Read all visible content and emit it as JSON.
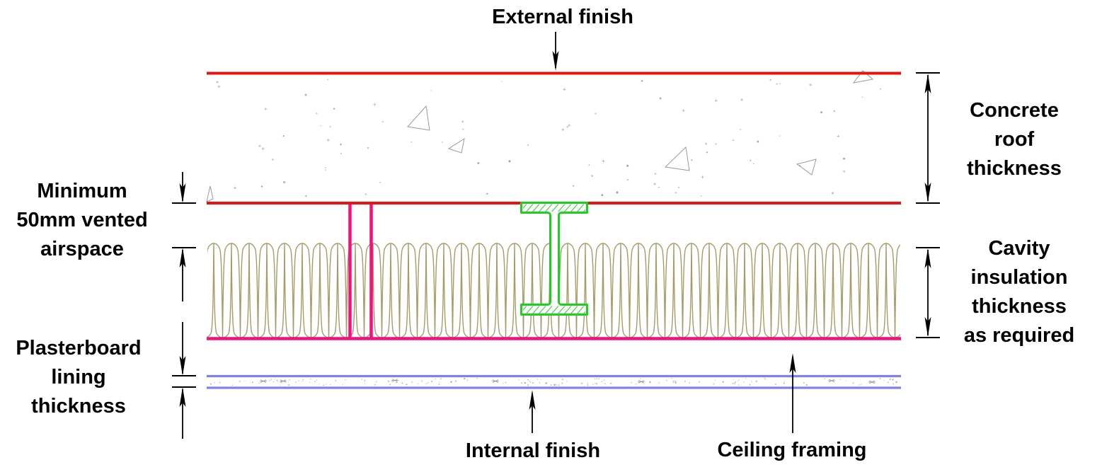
{
  "diagram": {
    "type": "roof-construction-detail-cross-section",
    "callouts": {
      "external_finish": "External finish",
      "internal_finish": "Internal finish",
      "ceiling_framing": "Ceiling framing"
    },
    "dimension_labels": {
      "concrete_roof": "Concrete\nroof\nthickness",
      "vented_airspace": "Minimum\n50mm vented\nairspace",
      "cavity_insulation": "Cavity\ninsulation\nthickness\nas required",
      "plasterboard": "Plasterboard\nlining\nthickness"
    },
    "colors": {
      "concrete_edge": "#e81311",
      "insulation_fibre": "#a59c68",
      "insulation_edge": "#f2117f",
      "steel_frame": "#1fcf1f",
      "plasterboard_edge": "#8182e8",
      "annotation": "#000000"
    }
  }
}
